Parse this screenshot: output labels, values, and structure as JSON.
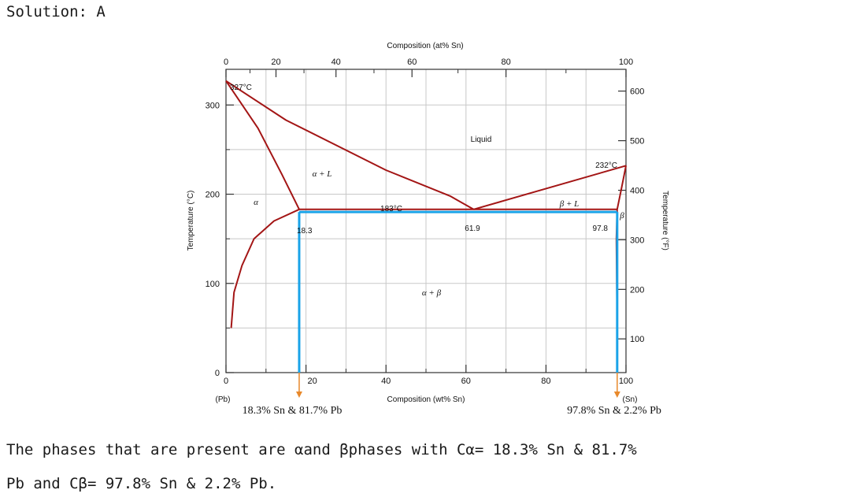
{
  "heading": "Solution: A",
  "explanation": {
    "line1": "The phases that are present are αand βphases with Cα= 18.3% Sn & 81.7%",
    "line2": "Pb and Cβ= 97.8% Sn & 2.2% Pb."
  },
  "chart_data": {
    "type": "line",
    "title": "Composition (at% Sn)",
    "xlabel": "Composition (wt% Sn)",
    "ylabel_left": "Temperature (°C)",
    "ylabel_right": "Temperature (°F)",
    "xlim": [
      0,
      100
    ],
    "ylim": [
      0,
      340
    ],
    "grid": true,
    "x_ticks": [
      "0",
      "20",
      "40",
      "60",
      "80",
      "100"
    ],
    "x_end_labels": [
      "(Pb)",
      "(Sn)"
    ],
    "top_ticks": [
      {
        "wt": 0,
        "label": "0"
      },
      {
        "wt": 12.5,
        "label": "20"
      },
      {
        "wt": 27.5,
        "label": "40"
      },
      {
        "wt": 46.5,
        "label": "60"
      },
      {
        "wt": 70,
        "label": "80"
      },
      {
        "wt": 100,
        "label": "100"
      }
    ],
    "y_ticks": [
      {
        "value": 0,
        "label": "0"
      },
      {
        "value": 100,
        "label": "100"
      },
      {
        "value": 200,
        "label": "200"
      },
      {
        "value": 300,
        "label": "300"
      }
    ],
    "right_ticks": [
      {
        "c": 37.8,
        "label": "100"
      },
      {
        "c": 93.3,
        "label": "200"
      },
      {
        "c": 148.9,
        "label": "300"
      },
      {
        "c": 204.4,
        "label": "400"
      },
      {
        "c": 260,
        "label": "500"
      },
      {
        "c": 315.6,
        "label": "600"
      }
    ],
    "series": [
      {
        "points": [
          [
            0,
            327
          ],
          [
            8,
            274
          ],
          [
            14,
            222
          ],
          [
            18.3,
            183
          ]
        ]
      },
      {
        "points": [
          [
            18.3,
            183
          ],
          [
            12,
            170
          ],
          [
            7,
            150
          ],
          [
            4,
            120
          ],
          [
            2,
            90
          ],
          [
            1.3,
            50
          ]
        ]
      },
      {
        "points": [
          [
            0,
            327
          ],
          [
            15,
            283
          ],
          [
            40,
            227
          ],
          [
            56,
            198
          ],
          [
            61.9,
            183
          ]
        ]
      },
      {
        "points": [
          [
            61.9,
            183
          ],
          [
            100,
            232
          ]
        ]
      },
      {
        "points": [
          [
            100,
            232
          ],
          [
            98.8,
            205
          ],
          [
            97.8,
            183
          ],
          [
            97.6,
            150
          ],
          [
            97.7,
            100
          ],
          [
            97.8,
            55
          ]
        ]
      },
      {
        "points": [
          [
            18.3,
            183
          ],
          [
            97.8,
            183
          ]
        ]
      }
    ],
    "points": [
      {
        "x": 0,
        "y": 327,
        "label": "327°C"
      },
      {
        "x": 61.9,
        "y": 183,
        "label": "183°C"
      },
      {
        "x": 100,
        "y": 232,
        "label": "232°C"
      }
    ],
    "phase_labels": {
      "liquid": "Liquid",
      "alpha_l": "α + L",
      "beta_l": "β + L",
      "alpha": "α",
      "beta": "β",
      "alpha_beta": "α + β"
    },
    "composition_labels": {
      "c_alpha": "18.3",
      "c_eutectic": "61.9",
      "c_beta": "97.8"
    },
    "tie_line": {
      "y": 180,
      "x_left": 18.3,
      "x_right": 97.8,
      "color": "#1aa3e8"
    },
    "annotations": {
      "left": "18.3% Sn & 81.7% Pb",
      "right": "97.8% Sn & 2.2% Pb"
    },
    "colors": {
      "phase_boundary": "#a31515",
      "tie_line": "#1aa3e8",
      "drop_arrow": "#e8892b",
      "grid": "#c8c8c8",
      "axis": "#333333"
    }
  }
}
